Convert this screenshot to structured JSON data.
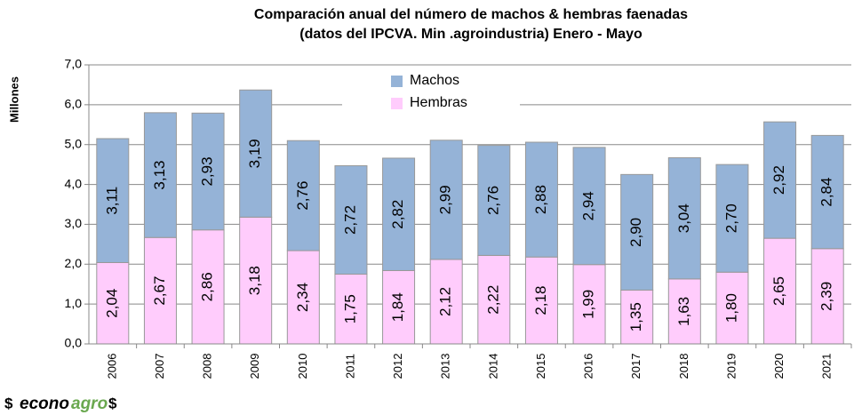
{
  "chart_data": {
    "type": "stacked_bar",
    "title": [
      "Comparación anual del número de machos & hembras faenadas",
      "(datos del IPCVA. Min .agroindustria) Enero - Mayo"
    ],
    "y_label": "Millones",
    "categories": [
      "2006",
      "2007",
      "2008",
      "2009",
      "2010",
      "2011",
      "2012",
      "2013",
      "2014",
      "2015",
      "2016",
      "2017",
      "2018",
      "2019",
      "2020",
      "2021"
    ],
    "series": [
      {
        "name": "Hembras",
        "color": "#ffccfc",
        "values": [
          2.04,
          2.67,
          2.86,
          3.18,
          2.34,
          1.75,
          1.84,
          2.12,
          2.22,
          2.18,
          1.99,
          1.35,
          1.63,
          1.8,
          2.65,
          2.39
        ],
        "value_labels": [
          "2,04",
          "2,67",
          "2,86",
          "3,18",
          "2,34",
          "1,75",
          "1,84",
          "2,12",
          "2,22",
          "2,18",
          "1,99",
          "1,35",
          "1,63",
          "1,80",
          "2,65",
          "2,39"
        ]
      },
      {
        "name": "Machos",
        "color": "#95b3d7",
        "values": [
          3.11,
          3.13,
          2.93,
          3.19,
          2.76,
          2.72,
          2.82,
          2.99,
          2.76,
          2.88,
          2.94,
          2.9,
          3.04,
          2.7,
          2.92,
          2.84
        ],
        "value_labels": [
          "3,11",
          "3,13",
          "2,93",
          "3,19",
          "2,76",
          "2,72",
          "2,82",
          "2,99",
          "2,76",
          "2,88",
          "2,94",
          "2,90",
          "3,04",
          "2,70",
          "2,92",
          "2,84"
        ]
      }
    ],
    "ylim": [
      0,
      7
    ],
    "yticks": [
      {
        "value": 0,
        "label": "0,0"
      },
      {
        "value": 1,
        "label": "1,0"
      },
      {
        "value": 2,
        "label": "2,0"
      },
      {
        "value": 3,
        "label": "3,0"
      },
      {
        "value": 4,
        "label": "4,0"
      },
      {
        "value": 5,
        "label": "5,0"
      },
      {
        "value": 6,
        "label": "6,0"
      },
      {
        "value": 7,
        "label": "7,0"
      }
    ],
    "grid": true,
    "legend_order": [
      1,
      0
    ]
  },
  "logo": {
    "left": "$",
    "brand_a": "econo",
    "brand_b": "agro",
    "right": "$"
  }
}
